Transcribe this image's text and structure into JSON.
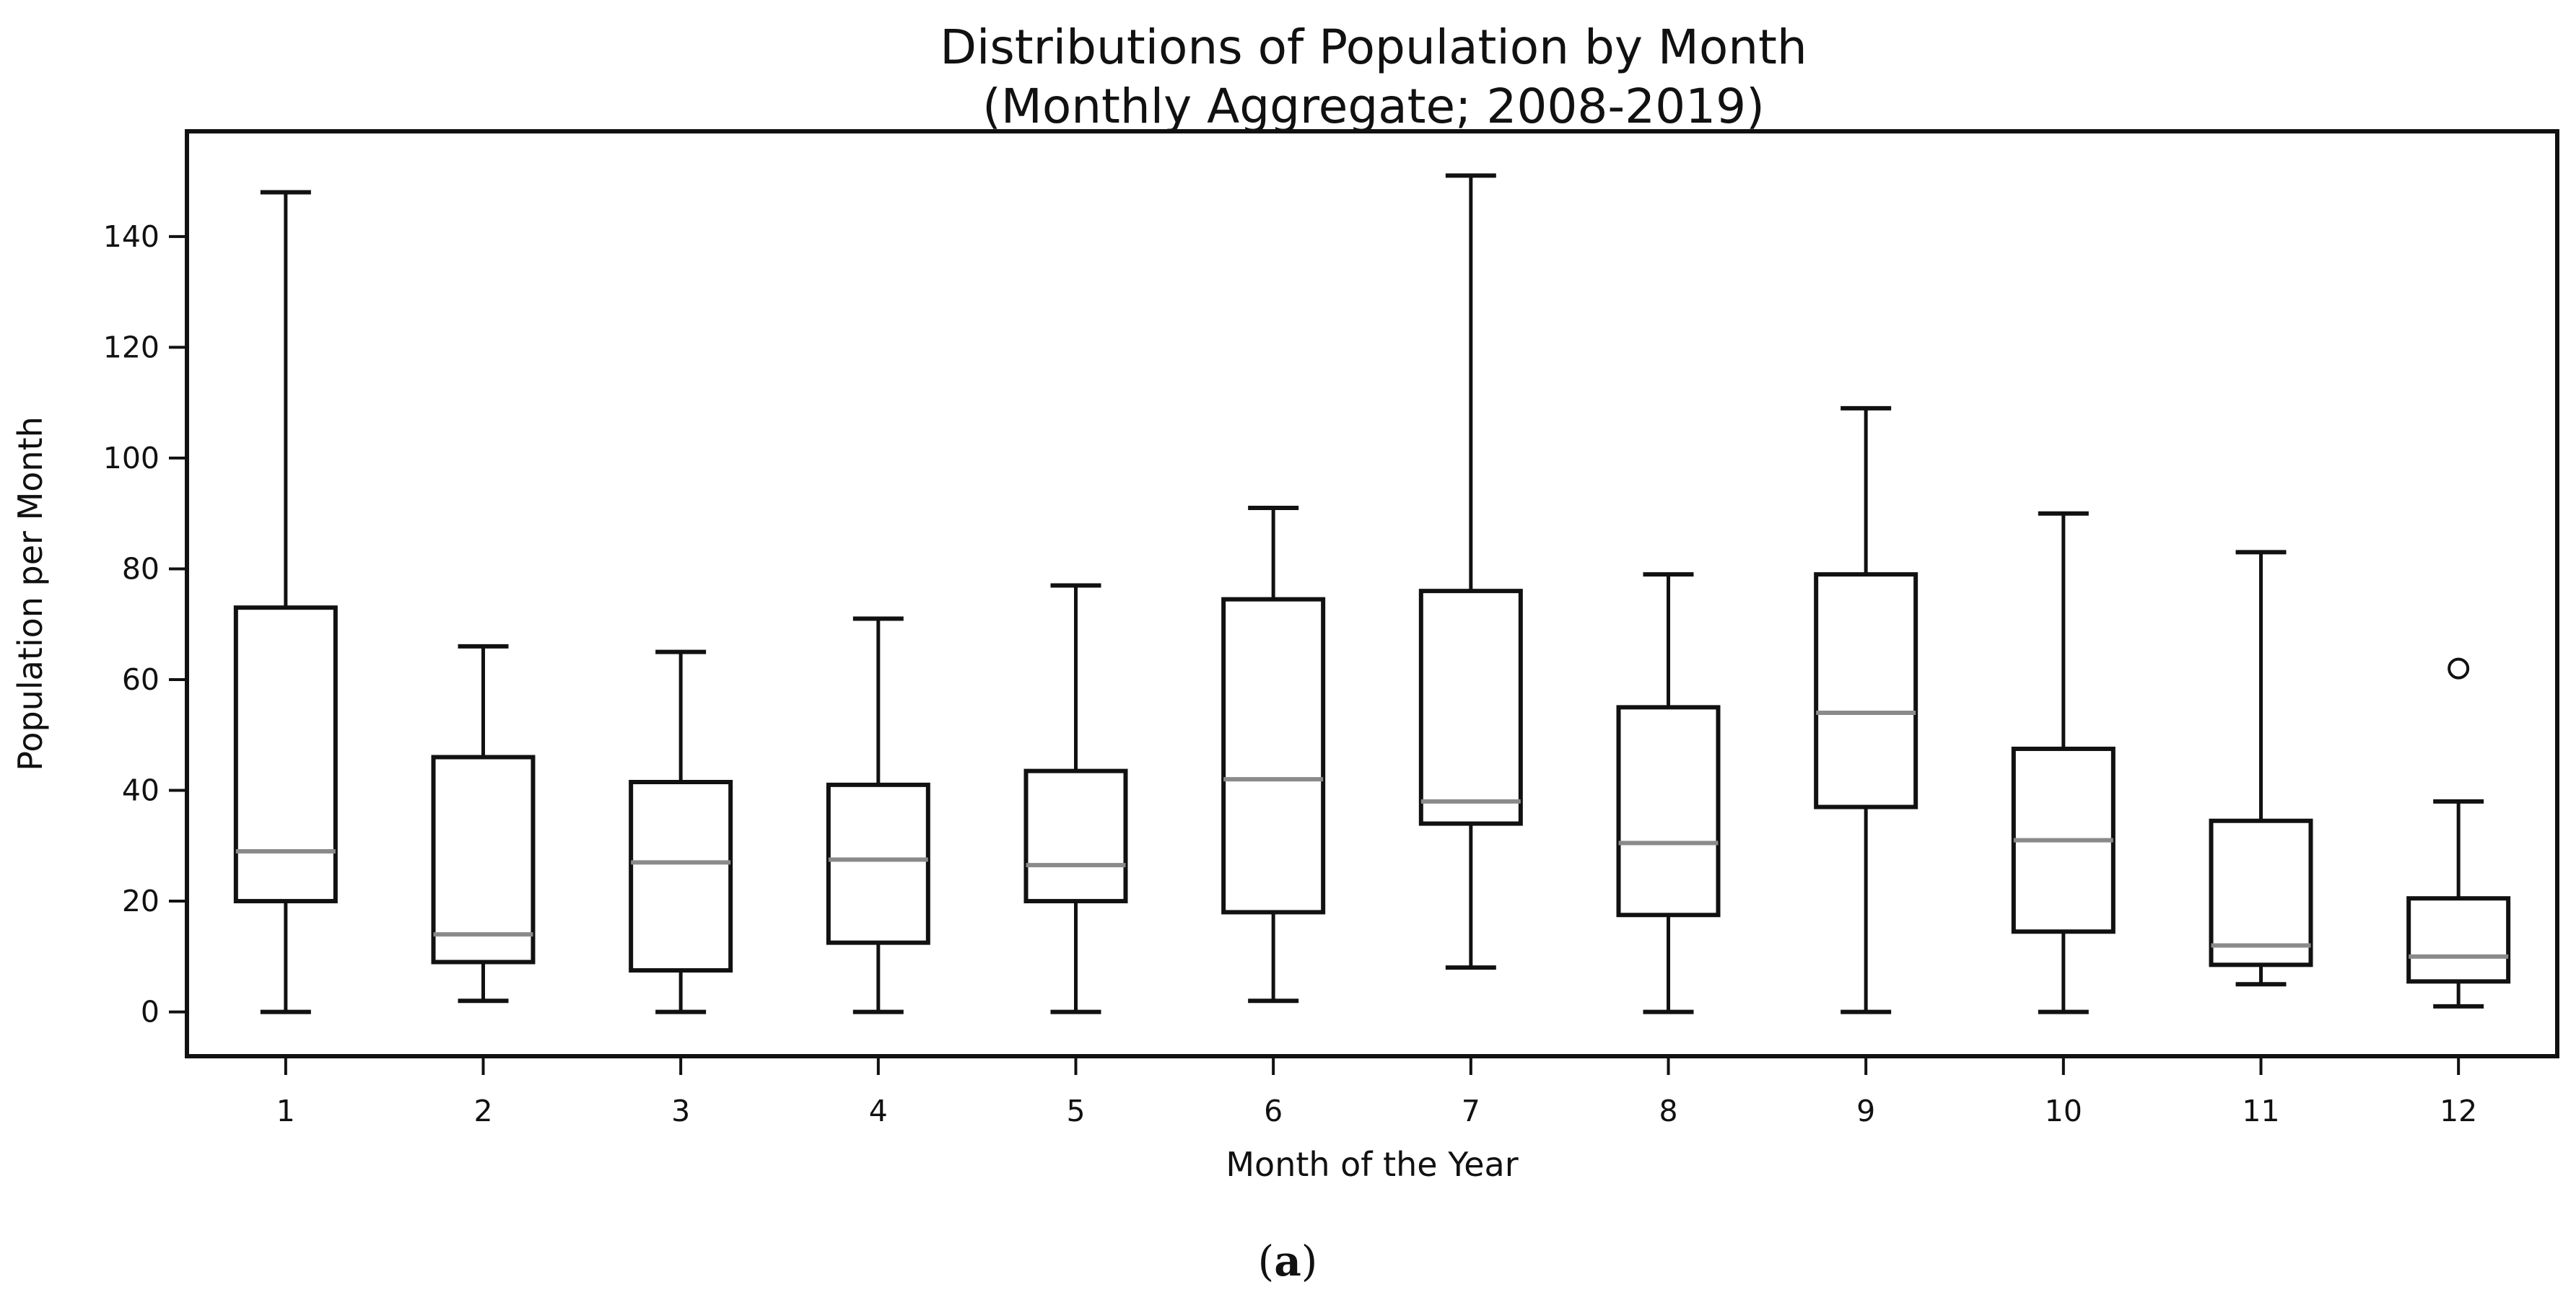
{
  "figure": {
    "title_line1": "Distributions of Population by Month",
    "title_line2": "(Monthly Aggregate; 2008-2019)",
    "caption": {
      "open": "(",
      "letter": "a",
      "close": ")"
    }
  },
  "chart_data": {
    "type": "box",
    "title": "Distributions of Population by Month (Monthly Aggregate; 2008-2019)",
    "xlabel": "Month of the Year",
    "ylabel": "Population per Month",
    "x_tick_labels": [
      "1",
      "2",
      "3",
      "4",
      "5",
      "6",
      "7",
      "8",
      "9",
      "10",
      "11",
      "12"
    ],
    "y_ticks": [
      0,
      20,
      40,
      60,
      80,
      100,
      120,
      140
    ],
    "ylim": [
      -8,
      159
    ],
    "grid": false,
    "legend": "none",
    "colors": {
      "box_edge": "#111111",
      "whisker": "#111111",
      "median": "#8a8a8a",
      "outlier_edge": "#111111",
      "background": "#ffffff"
    },
    "series": [
      {
        "month": "1",
        "whisker_low": 0,
        "q1": 20,
        "median": 29,
        "q3": 73,
        "whisker_high": 148,
        "outliers": []
      },
      {
        "month": "2",
        "whisker_low": 2,
        "q1": 9,
        "median": 14,
        "q3": 46,
        "whisker_high": 66,
        "outliers": []
      },
      {
        "month": "3",
        "whisker_low": 0,
        "q1": 7.5,
        "median": 27,
        "q3": 41.5,
        "whisker_high": 65,
        "outliers": []
      },
      {
        "month": "4",
        "whisker_low": 0,
        "q1": 12.5,
        "median": 27.5,
        "q3": 41,
        "whisker_high": 71,
        "outliers": []
      },
      {
        "month": "5",
        "whisker_low": 0,
        "q1": 20,
        "median": 26.5,
        "q3": 43.5,
        "whisker_high": 77,
        "outliers": []
      },
      {
        "month": "6",
        "whisker_low": 2,
        "q1": 18,
        "median": 42,
        "q3": 74.5,
        "whisker_high": 91,
        "outliers": []
      },
      {
        "month": "7",
        "whisker_low": 8,
        "q1": 34,
        "median": 38,
        "q3": 76,
        "whisker_high": 151,
        "outliers": []
      },
      {
        "month": "8",
        "whisker_low": 0,
        "q1": 17.5,
        "median": 30.5,
        "q3": 55,
        "whisker_high": 79,
        "outliers": []
      },
      {
        "month": "9",
        "whisker_low": 0,
        "q1": 37,
        "median": 54,
        "q3": 79,
        "whisker_high": 109,
        "outliers": []
      },
      {
        "month": "10",
        "whisker_low": 0,
        "q1": 14.5,
        "median": 31,
        "q3": 47.5,
        "whisker_high": 90,
        "outliers": []
      },
      {
        "month": "11",
        "whisker_low": 5,
        "q1": 8.5,
        "median": 12,
        "q3": 34.5,
        "whisker_high": 83,
        "outliers": []
      },
      {
        "month": "12",
        "whisker_low": 1,
        "q1": 5.5,
        "median": 10,
        "q3": 20.5,
        "whisker_high": 38,
        "outliers": [
          62
        ]
      }
    ]
  }
}
